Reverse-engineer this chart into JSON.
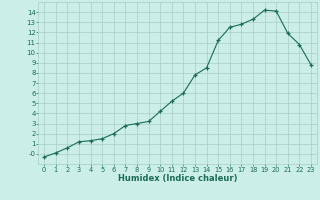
{
  "x": [
    0,
    1,
    2,
    3,
    4,
    5,
    6,
    7,
    8,
    9,
    10,
    11,
    12,
    13,
    14,
    15,
    16,
    17,
    18,
    19,
    20,
    21,
    22,
    23
  ],
  "y": [
    -0.3,
    0.1,
    0.6,
    1.2,
    1.3,
    1.5,
    2.0,
    2.8,
    3.0,
    3.2,
    4.2,
    5.2,
    6.0,
    7.8,
    8.5,
    11.2,
    12.5,
    12.8,
    13.3,
    14.2,
    14.1,
    11.9,
    10.8,
    8.8
  ],
  "xlabel": "Humidex (Indice chaleur)",
  "xlim": [
    -0.5,
    23.5
  ],
  "ylim": [
    -1,
    15
  ],
  "yticks": [
    0,
    1,
    2,
    3,
    4,
    5,
    6,
    7,
    8,
    9,
    10,
    11,
    12,
    13,
    14
  ],
  "xticks": [
    0,
    1,
    2,
    3,
    4,
    5,
    6,
    7,
    8,
    9,
    10,
    11,
    12,
    13,
    14,
    15,
    16,
    17,
    18,
    19,
    20,
    21,
    22,
    23
  ],
  "bg_color": "#cceee8",
  "grid_color": "#aaccc8",
  "line_color": "#1a6b5a",
  "marker_color": "#1a6b5a",
  "axis_label_color": "#1a6b5a",
  "tick_label_color": "#1a6b5a",
  "ytick_labels": [
    "-0",
    "1",
    "2",
    "3",
    "4",
    "5",
    "6",
    "7",
    "8",
    "9",
    "10",
    "11",
    "12",
    "13",
    "14"
  ]
}
